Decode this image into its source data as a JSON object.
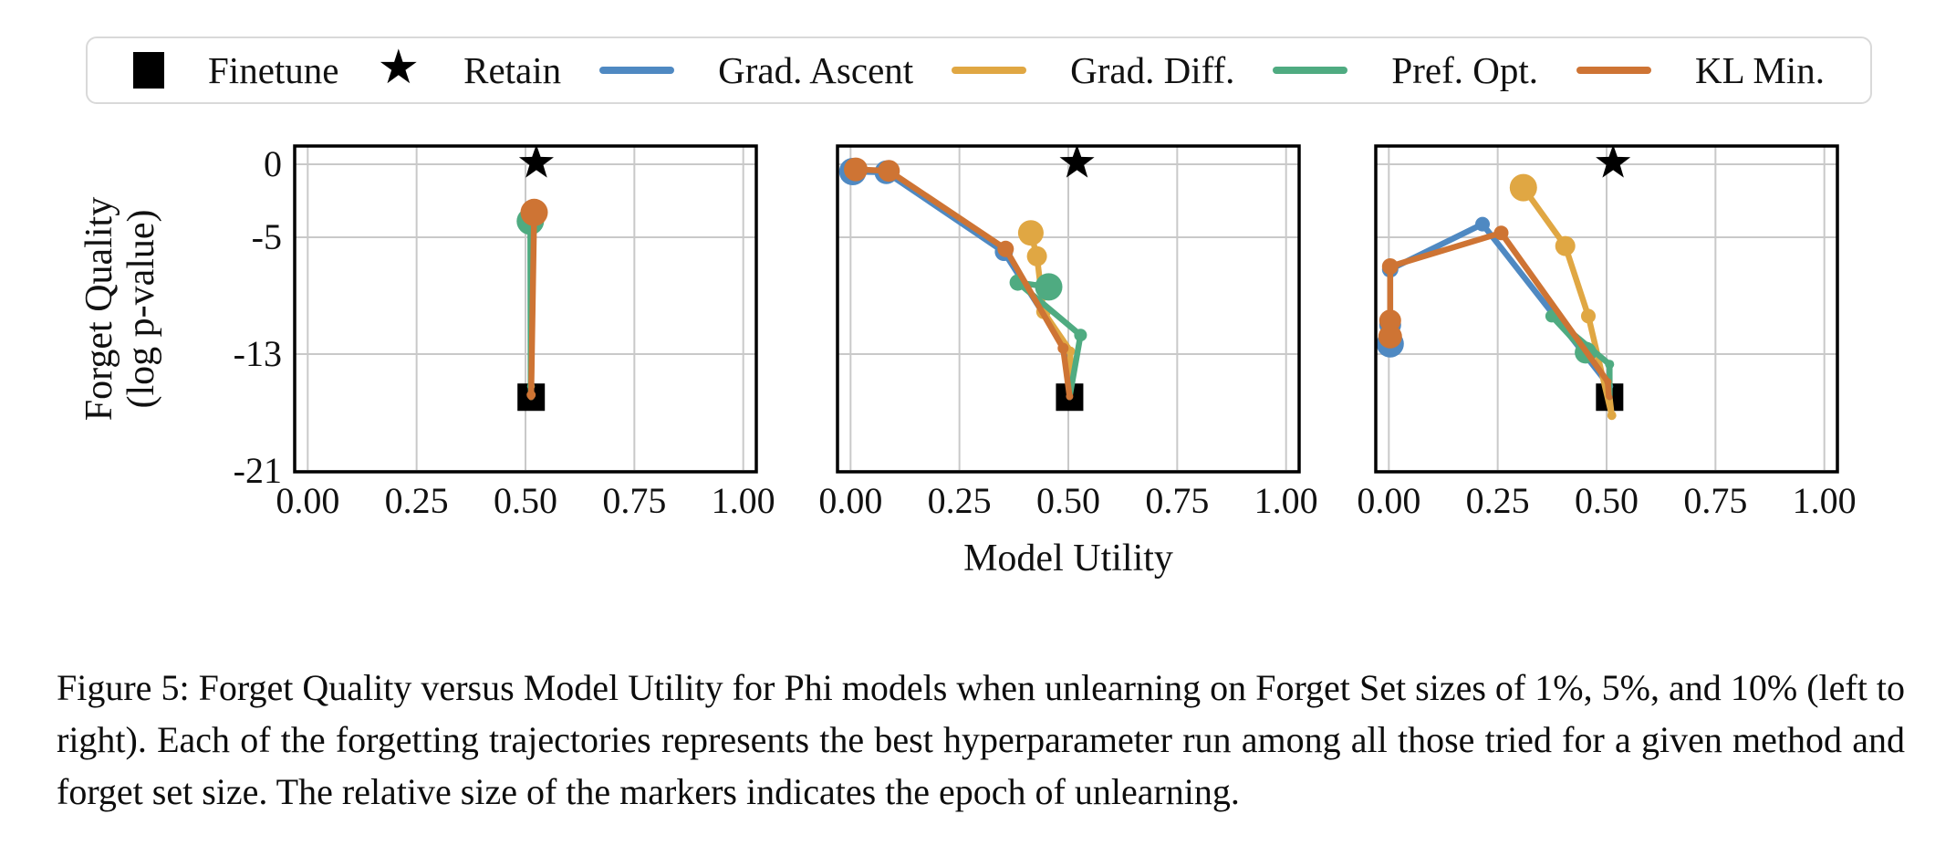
{
  "figure": {
    "caption": "Figure 5: Forget Quality versus Model Utility for Phi models when unlearning on Forget Set sizes of 1%, 5%, and 10% (left to right). Each of the forgetting trajectories represents the best hyperparameter run among all those tried for a given method and forget set size. The relative size of the markers indicates the epoch of unlearning."
  },
  "colors": {
    "grad_ascent": "#4f89c2",
    "grad_diff": "#e0a743",
    "pref_opt": "#4fab81",
    "kl_min": "#ce7434",
    "reference": "#000000",
    "grid": "#c9c9c9",
    "axis": "#000000",
    "legend_border": "#d9d9d9"
  },
  "legend": {
    "items": [
      {
        "label": "Finetune",
        "marker": "square",
        "color_key": "reference"
      },
      {
        "label": "Retain",
        "marker": "star",
        "color_key": "reference"
      },
      {
        "label": "Grad. Ascent",
        "marker": "line",
        "color_key": "grad_ascent"
      },
      {
        "label": "Grad. Diff.",
        "marker": "line",
        "color_key": "grad_diff"
      },
      {
        "label": "Pref. Opt.",
        "marker": "line",
        "color_key": "pref_opt"
      },
      {
        "label": "KL Min.",
        "marker": "line",
        "color_key": "kl_min"
      }
    ]
  },
  "chart_data": {
    "type": "line",
    "title": "",
    "xlabel": "Model Utility",
    "ylabel_line1": "Forget Quality",
    "ylabel_line2": "(log p-value)",
    "x_tick_labels": [
      "0.00",
      "0.25",
      "0.50",
      "0.75",
      "1.00"
    ],
    "x_tick_values": [
      0,
      0.25,
      0.5,
      0.75,
      1.0
    ],
    "y_tick_labels": [
      "0",
      "-5",
      "-13",
      "-21"
    ],
    "y_tick_values": [
      0,
      -5,
      -13,
      -21
    ],
    "xlim": [
      -0.03,
      1.03
    ],
    "ylim": [
      1.25,
      -21.06
    ],
    "grid": true,
    "marker_note": "relative marker size encodes the epoch of unlearning; point format is [model_utility, log_p_value, marker_radius_px]",
    "plots": [
      {
        "forget_set": "1%",
        "star": [
          0.525,
          0.1
        ],
        "square": [
          0.513,
          -15.95
        ],
        "series": [
          {
            "name": "Grad. Ascent",
            "color_key": "grad_ascent",
            "points": [
              [
                0.513,
                -15.2,
                4
              ],
              [
                0.515,
                -3.7,
                13
              ]
            ]
          },
          {
            "name": "Grad. Diff.",
            "color_key": "grad_diff",
            "points": [
              [
                0.513,
                -15.2,
                4
              ],
              [
                0.516,
                -3.6,
                14
              ]
            ]
          },
          {
            "name": "Pref. Opt.",
            "color_key": "pref_opt",
            "points": [
              [
                0.512,
                -15.2,
                4
              ],
              [
                0.511,
                -3.9,
                15
              ]
            ]
          },
          {
            "name": "KL Min.",
            "color_key": "kl_min",
            "points": [
              [
                0.513,
                -15.8,
                5
              ],
              [
                0.52,
                -3.3,
                15
              ]
            ]
          }
        ]
      },
      {
        "forget_set": "5%",
        "star": [
          0.52,
          0.1
        ],
        "square": [
          0.503,
          -15.95
        ],
        "series": [
          {
            "name": "Grad. Ascent",
            "color_key": "grad_ascent",
            "points": [
              [
                0.5,
                -12.9,
                6
              ],
              [
                0.352,
                -6.0,
                10
              ],
              [
                0.082,
                -0.55,
                13
              ],
              [
                0.005,
                -0.5,
                15
              ]
            ]
          },
          {
            "name": "Grad. Diff.",
            "color_key": "grad_diff",
            "points": [
              [
                0.505,
                -12.8,
                5
              ],
              [
                0.443,
                -10.1,
                8
              ],
              [
                0.428,
                -6.3,
                11
              ],
              [
                0.414,
                -4.7,
                14
              ]
            ]
          },
          {
            "name": "Pref. Opt.",
            "color_key": "pref_opt",
            "points": [
              [
                0.528,
                -11.7,
                7
              ],
              [
                0.384,
                -8.1,
                9
              ],
              [
                0.455,
                -8.4,
                15
              ]
            ]
          },
          {
            "name": "KL Min.",
            "color_key": "kl_min",
            "points": [
              [
                0.503,
                -15.9,
                4
              ],
              [
                0.488,
                -12.6,
                6
              ],
              [
                0.356,
                -5.8,
                9
              ],
              [
                0.088,
                -0.45,
                12
              ],
              [
                0.012,
                -0.35,
                13
              ]
            ]
          }
        ]
      },
      {
        "forget_set": "10%",
        "star": [
          0.515,
          0.1
        ],
        "square": [
          0.507,
          -15.95
        ],
        "series": [
          {
            "name": "Grad. Ascent",
            "color_key": "grad_ascent",
            "points": [
              [
                0.507,
                -15.2,
                4
              ],
              [
                0.215,
                -4.1,
                8
              ],
              [
                0.003,
                -7.2,
                9
              ],
              [
                0.003,
                -11.0,
                12
              ],
              [
                0.003,
                -12.3,
                15
              ]
            ]
          },
          {
            "name": "Grad. Diff.",
            "color_key": "grad_diff",
            "points": [
              [
                0.512,
                -17.2,
                5
              ],
              [
                0.458,
                -10.4,
                8
              ],
              [
                0.405,
                -5.6,
                11
              ],
              [
                0.309,
                -1.6,
                15
              ]
            ]
          },
          {
            "name": "Pref. Opt.",
            "color_key": "pref_opt",
            "points": [
              [
                0.507,
                -13.7,
                5
              ],
              [
                0.374,
                -10.4,
                7
              ],
              [
                0.452,
                -12.9,
                12
              ]
            ]
          },
          {
            "name": "KL Min.",
            "color_key": "kl_min",
            "points": [
              [
                0.505,
                -15.9,
                3
              ],
              [
                0.503,
                -14.9,
                4
              ],
              [
                0.258,
                -4.7,
                8
              ],
              [
                0.003,
                -7.0,
                9
              ],
              [
                0.003,
                -10.7,
                12
              ],
              [
                0.003,
                -11.8,
                13
              ]
            ]
          }
        ]
      }
    ]
  }
}
